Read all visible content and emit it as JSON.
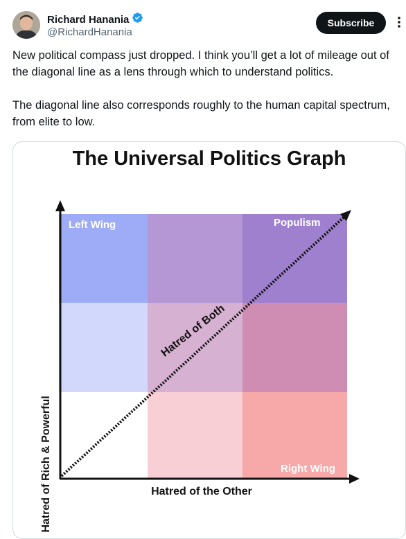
{
  "author": {
    "name": "Richard Hanania",
    "handle": "@RichardHanania",
    "verified": true,
    "avatar_icon": "profile-photo"
  },
  "subscribe_label": "Subscribe",
  "more_icon": "ellipsis-vertical-icon",
  "tweet": {
    "paragraph_1": "New political compass just dropped. I think you’ll get a lot of mileage out of the diagonal line as a lens through which to understand politics.",
    "paragraph_2": "The diagonal line also corresponds roughly to the human capital spectrum, from elite to low."
  },
  "graph": {
    "title": "The Universal Politics Graph",
    "y_axis_label": "Hatred of Rich & Powerful",
    "x_axis_label": "Hatred of the Other",
    "diagonal_label": "Hatred of Both",
    "top_left_label": "Left Wing",
    "top_right_label": "Populism",
    "bottom_right_label": "Right Wing",
    "cell_colors": {
      "r0": [
        "#9eabf6",
        "#b497d4",
        "#9f80cf"
      ],
      "r1": [
        "#d1d8fb",
        "#d6b1d1",
        "#cf8db4"
      ],
      "r2": [
        "#ffffff",
        "#f8cfd4",
        "#f7a8a8"
      ]
    }
  }
}
